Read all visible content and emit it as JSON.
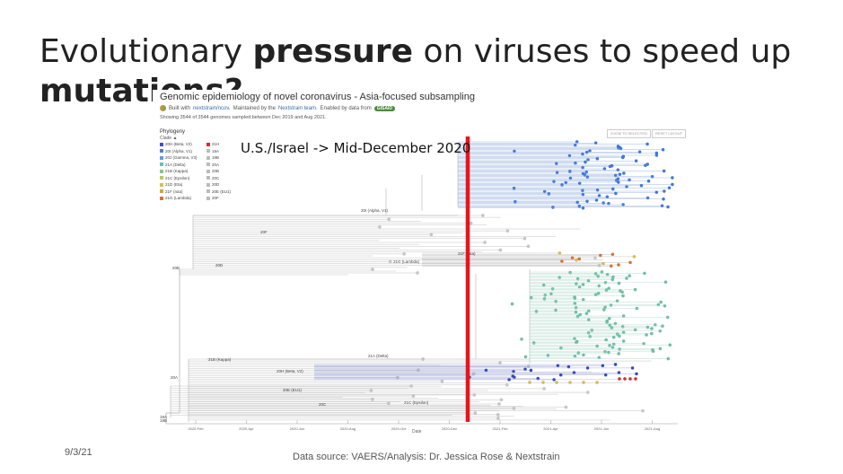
{
  "slide": {
    "title_part1": "Evolutionary ",
    "title_bold1": "pressure",
    "title_part2": " on viruses to speed up",
    "title_bold2": "mutations?",
    "date": "9/3/21",
    "source": "Data source: VAERS/Analysis: Dr. Jessica Rose & Nextstrain",
    "annotation": "U.S./Israel -> Mid-December 2020"
  },
  "figure": {
    "title": "Genomic epidemiology of novel coronavirus - Asia-focused subsampling",
    "credit_built": "Built with",
    "credit_ns": "nextstrain/ncov.",
    "credit_maint": "Maintained by the",
    "credit_team": "Nextstrain team.",
    "credit_enabled": "Enabled by data from",
    "gisaid": "GISAID",
    "count": "Showing 3544 of 3544 genomes sampled between Dec 2019 and Aug 2021.",
    "phylogeny_label": "Phylogeny",
    "color_by": "Clade",
    "zoom_button": "ZOOM TO SELECTED",
    "reset_button": "RESET LAYOUT",
    "axis_title": "Date",
    "x_ticks": [
      "2020-Feb",
      "2020-Apr",
      "2020-Jun",
      "2020-Aug",
      "2020-Oct",
      "2020-Dec",
      "2021-Feb",
      "2021-Apr",
      "2021-Jun",
      "2021-Aug"
    ],
    "legend": [
      {
        "label": "20H (Beta, V2)",
        "color": "#3a50c8"
      },
      {
        "label": "20I (Alpha, V1)",
        "color": "#4a7fd8"
      },
      {
        "label": "20J (Gamma, V3)",
        "color": "#5a9ee0"
      },
      {
        "label": "21A (Delta)",
        "color": "#6cbfb0"
      },
      {
        "label": "21B (Kappa)",
        "color": "#88c888"
      },
      {
        "label": "21C (Epsilon)",
        "color": "#b8c860"
      },
      {
        "label": "21D (Eta)",
        "color": "#d8c050"
      },
      {
        "label": "21F (Iota)",
        "color": "#e0a040"
      },
      {
        "label": "21G (Lambda)",
        "color": "#e07030"
      },
      {
        "label": "21H",
        "color": "#d03030"
      },
      {
        "label": "19A",
        "color": "#bbbbbb"
      },
      {
        "label": "19B",
        "color": "#bbbbbb"
      },
      {
        "label": "20A",
        "color": "#bbbbbb"
      },
      {
        "label": "20B",
        "color": "#bbbbbb"
      },
      {
        "label": "20C",
        "color": "#bbbbbb"
      },
      {
        "label": "20D",
        "color": "#bbbbbb"
      },
      {
        "label": "20E (EU1)",
        "color": "#bbbbbb"
      },
      {
        "label": "20F",
        "color": "#bbbbbb"
      }
    ],
    "clade_labels": [
      {
        "text": "20I (Alpha, V1)",
        "id": "alpha"
      },
      {
        "text": "20F",
        "id": "f"
      },
      {
        "text": "21G (Lambda)",
        "id": "lambda"
      },
      {
        "text": "21F (Iota)",
        "id": "iota"
      },
      {
        "text": "20D",
        "id": "d"
      },
      {
        "text": "20B",
        "id": "b"
      },
      {
        "text": "21A (Delta)",
        "id": "delta"
      },
      {
        "text": "21B (Kappa)",
        "id": "kappa"
      },
      {
        "text": "20H (Beta, V2)",
        "id": "beta"
      },
      {
        "text": "20E (EU1)",
        "id": "eu1"
      },
      {
        "text": "20A",
        "id": "a"
      },
      {
        "text": "20C",
        "id": "c"
      },
      {
        "text": "21C (Epsilon)",
        "id": "epsilon"
      },
      {
        "text": "19A",
        "id": "a19"
      },
      {
        "text": "19B",
        "id": "b19"
      }
    ],
    "colors": {
      "marker": "#e8141c",
      "branch_gray": "#b4b4b4",
      "alpha": "#3f7ae0",
      "delta": "#6ec2a8",
      "beta": "#3448c8",
      "lambda": "#e07030",
      "yellow": "#d8c050"
    }
  }
}
